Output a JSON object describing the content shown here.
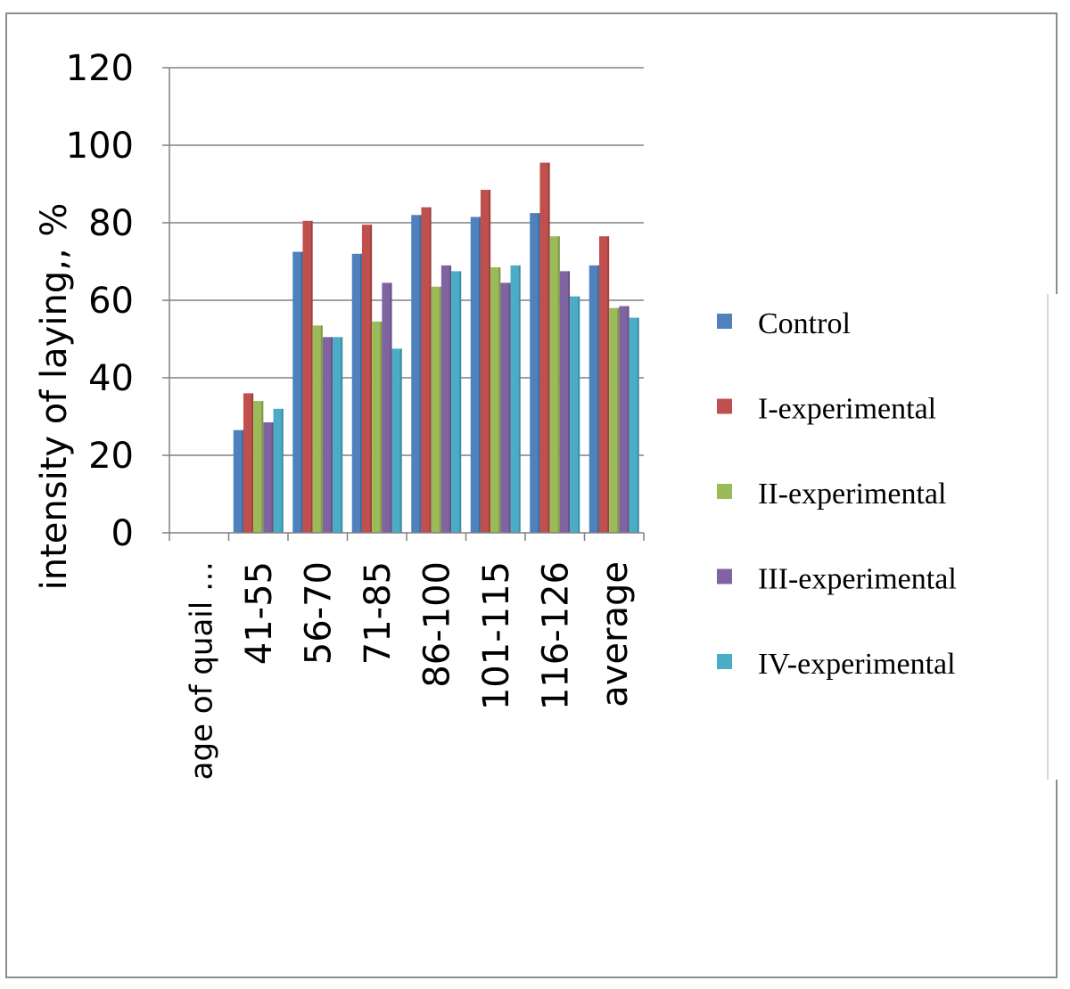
{
  "chart_data": {
    "type": "bar",
    "title": "",
    "xlabel": "",
    "ylabel": "intensity of laying,, %",
    "ylim": [
      0,
      120
    ],
    "yticks": [
      0,
      20,
      40,
      60,
      80,
      100,
      120
    ],
    "grid": true,
    "legend_position": "right",
    "categories": [
      "age of quail …",
      "41-55",
      "56-70",
      "71-85",
      "86-100",
      "101-115",
      "116-126",
      "average"
    ],
    "series": [
      {
        "name": "Control",
        "color": "#4f81bd",
        "values": [
          0,
          26.5,
          72.5,
          72,
          82,
          81.5,
          82.5,
          69
        ]
      },
      {
        "name": "I-experimental",
        "color": "#c0504d",
        "values": [
          0,
          36,
          80.5,
          79.5,
          84,
          88.5,
          95.5,
          76.5
        ]
      },
      {
        "name": "II-experimental",
        "color": "#9bbb59",
        "values": [
          0,
          34,
          53.5,
          54.5,
          63.5,
          68.5,
          76.5,
          58
        ]
      },
      {
        "name": "III-experimental",
        "color": "#8064a2",
        "values": [
          0,
          28.5,
          50.5,
          64.5,
          69,
          64.5,
          67.5,
          58.5
        ]
      },
      {
        "name": "IV-experimental",
        "color": "#4bacc6",
        "values": [
          0,
          32,
          50.5,
          47.5,
          67.5,
          69,
          61,
          55.5
        ]
      }
    ]
  }
}
